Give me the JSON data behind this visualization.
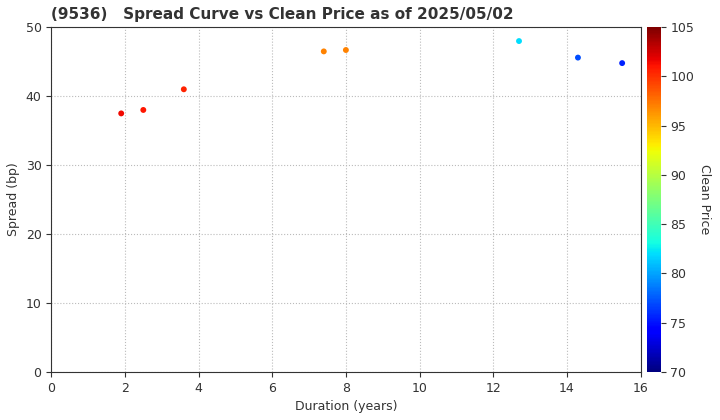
{
  "title": "(9536)   Spread Curve vs Clean Price as of 2025/05/02",
  "xlabel": "Duration (years)",
  "ylabel": "Spread (bp)",
  "colorbar_label": "Clean Price",
  "xlim": [
    0,
    16
  ],
  "ylim": [
    0,
    50
  ],
  "xticks": [
    0,
    2,
    4,
    6,
    8,
    10,
    12,
    14,
    16
  ],
  "yticks": [
    0,
    10,
    20,
    30,
    40,
    50
  ],
  "cmap_min": 70,
  "cmap_max": 105,
  "cbar_ticks": [
    70,
    75,
    80,
    85,
    90,
    95,
    100,
    105
  ],
  "points": [
    {
      "duration": 1.9,
      "spread": 37.5,
      "price": 101.5
    },
    {
      "duration": 2.5,
      "spread": 38.0,
      "price": 101.0
    },
    {
      "duration": 3.6,
      "spread": 41.0,
      "price": 100.5
    },
    {
      "duration": 7.4,
      "spread": 46.5,
      "price": 97.0
    },
    {
      "duration": 8.0,
      "spread": 46.7,
      "price": 97.0
    },
    {
      "duration": 12.7,
      "spread": 48.0,
      "price": 82.0
    },
    {
      "duration": 14.3,
      "spread": 45.6,
      "price": 77.0
    },
    {
      "duration": 15.5,
      "spread": 44.8,
      "price": 75.5
    }
  ],
  "marker_size": 18,
  "background_color": "#ffffff",
  "grid_color": "#bbbbbb",
  "title_fontsize": 11,
  "label_fontsize": 9,
  "tick_fontsize": 9,
  "title_color": "#333333"
}
